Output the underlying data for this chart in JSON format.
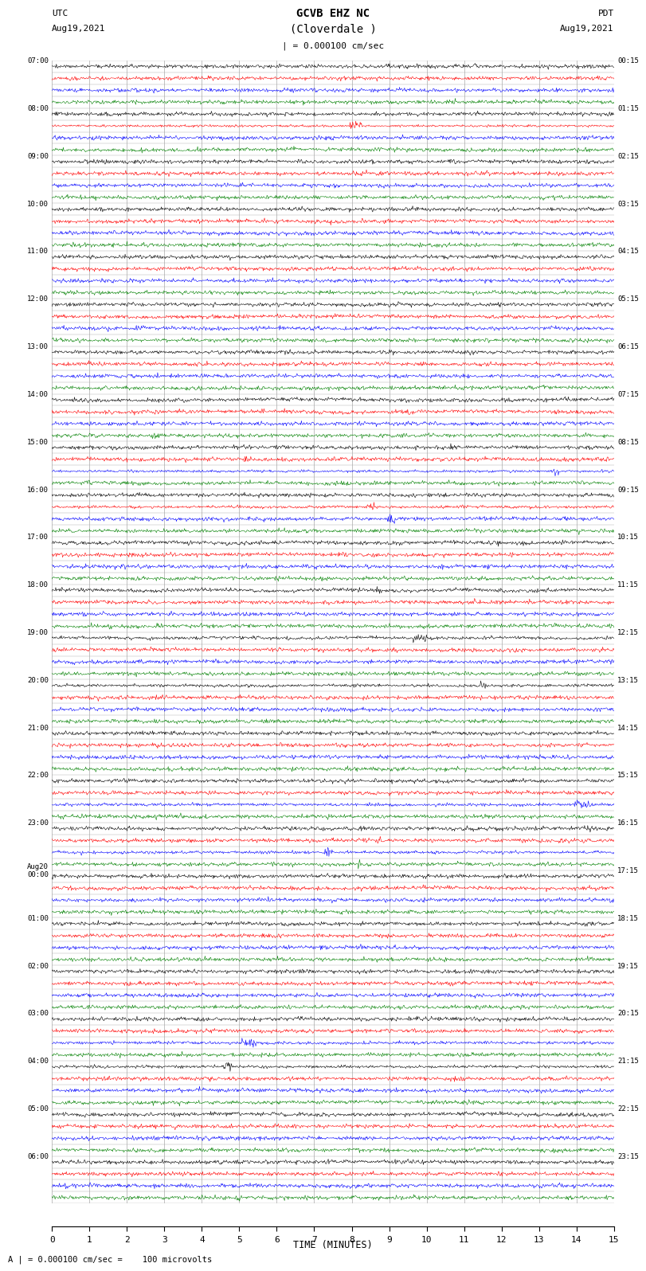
{
  "title_line1": "GCVB EHZ NC",
  "title_line2": "(Cloverdale )",
  "scale_label": "| = 0.000100 cm/sec",
  "footer_label": "A | = 0.000100 cm/sec =    100 microvolts",
  "utc_label": "UTC",
  "utc_date": "Aug19,2021",
  "pdt_label": "PDT",
  "pdt_date": "Aug19,2021",
  "xlabel": "TIME (MINUTES)",
  "xticks": [
    0,
    1,
    2,
    3,
    4,
    5,
    6,
    7,
    8,
    9,
    10,
    11,
    12,
    13,
    14,
    15
  ],
  "trace_colors": [
    "black",
    "red",
    "blue",
    "green"
  ],
  "bg_color": "white",
  "grid_color": "#aaaaaa",
  "num_rows": 96,
  "minutes_per_row": 15,
  "fig_width": 8.5,
  "fig_height": 16.13,
  "left_times_utc": [
    "07:00",
    "",
    "",
    "",
    "08:00",
    "",
    "",
    "",
    "09:00",
    "",
    "",
    "",
    "10:00",
    "",
    "",
    "",
    "11:00",
    "",
    "",
    "",
    "12:00",
    "",
    "",
    "",
    "13:00",
    "",
    "",
    "",
    "14:00",
    "",
    "",
    "",
    "15:00",
    "",
    "",
    "",
    "16:00",
    "",
    "",
    "",
    "17:00",
    "",
    "",
    "",
    "18:00",
    "",
    "",
    "",
    "19:00",
    "",
    "",
    "",
    "20:00",
    "",
    "",
    "",
    "21:00",
    "",
    "",
    "",
    "22:00",
    "",
    "",
    "",
    "23:00",
    "",
    "",
    "",
    "Aug20\n00:00",
    "",
    "",
    "",
    "01:00",
    "",
    "",
    "",
    "02:00",
    "",
    "",
    "",
    "03:00",
    "",
    "",
    "",
    "04:00",
    "",
    "",
    "",
    "05:00",
    "",
    "",
    "",
    "06:00",
    "",
    "",
    ""
  ],
  "right_times_pdt": [
    "00:15",
    "",
    "",
    "",
    "01:15",
    "",
    "",
    "",
    "02:15",
    "",
    "",
    "",
    "03:15",
    "",
    "",
    "",
    "04:15",
    "",
    "",
    "",
    "05:15",
    "",
    "",
    "",
    "06:15",
    "",
    "",
    "",
    "07:15",
    "",
    "",
    "",
    "08:15",
    "",
    "",
    "",
    "09:15",
    "",
    "",
    "",
    "10:15",
    "",
    "",
    "",
    "11:15",
    "",
    "",
    "",
    "12:15",
    "",
    "",
    "",
    "13:15",
    "",
    "",
    "",
    "14:15",
    "",
    "",
    "",
    "15:15",
    "",
    "",
    "",
    "16:15",
    "",
    "",
    "",
    "17:15",
    "",
    "",
    "",
    "18:15",
    "",
    "",
    "",
    "19:15",
    "",
    "",
    "",
    "20:15",
    "",
    "",
    "",
    "21:15",
    "",
    "",
    "",
    "22:15",
    "",
    "",
    "",
    "23:15",
    "",
    "",
    ""
  ],
  "noise_level": 0.25,
  "seed": 42
}
